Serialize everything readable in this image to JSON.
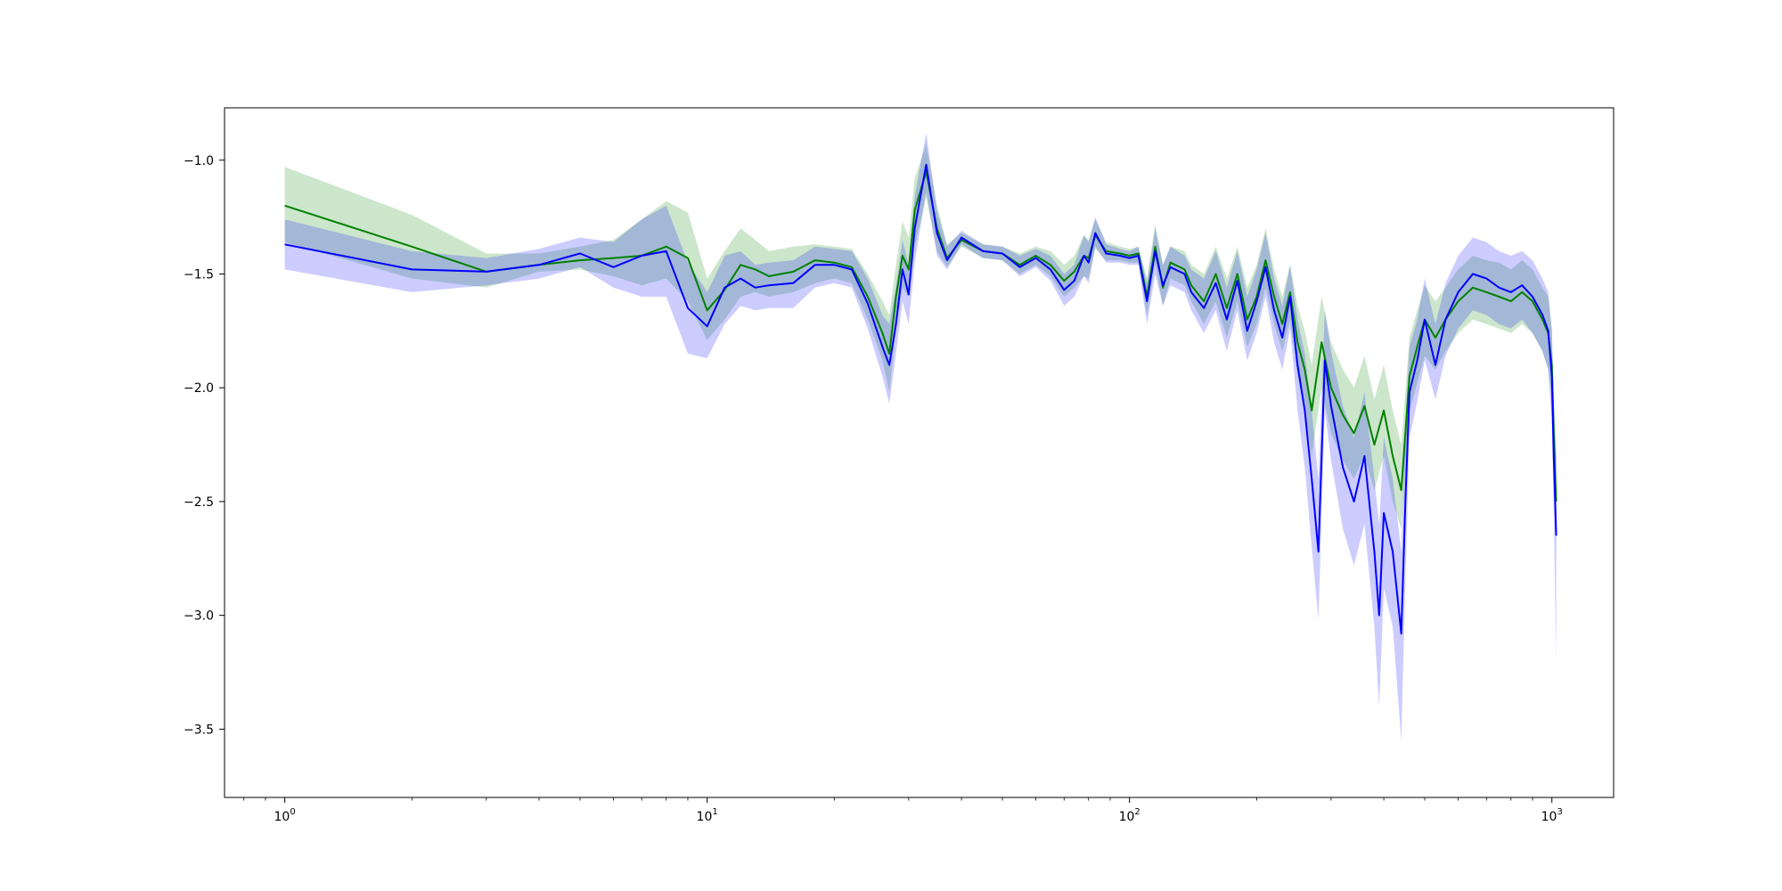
{
  "chart_data": {
    "type": "line",
    "title": "",
    "xlabel": "",
    "ylabel": "",
    "x_scale": "log",
    "xlim": [
      0.72,
      1400
    ],
    "ylim": [
      -3.8,
      -0.77
    ],
    "grid": false,
    "legend": null,
    "x_ticks": [
      {
        "value": 1,
        "label": "10",
        "exp": "0"
      },
      {
        "value": 10,
        "label": "10",
        "exp": "1"
      },
      {
        "value": 100,
        "label": "10",
        "exp": "2"
      },
      {
        "value": 1000,
        "label": "10",
        "exp": "3"
      }
    ],
    "y_ticks": [
      {
        "value": -1.0,
        "label": "−1.0"
      },
      {
        "value": -1.5,
        "label": "−1.5"
      },
      {
        "value": -2.0,
        "label": "−2.0"
      },
      {
        "value": -2.5,
        "label": "−2.5"
      },
      {
        "value": -3.0,
        "label": "−3.0"
      },
      {
        "value": -3.5,
        "label": "−3.5"
      }
    ],
    "series": [
      {
        "color": "#008000",
        "band_color": "#008000",
        "points": [
          [
            1,
            -1.2,
            -1.36,
            -1.03
          ],
          [
            2,
            -1.38,
            -1.52,
            -1.24
          ],
          [
            3,
            -1.49,
            -1.56,
            -1.41
          ],
          [
            4,
            -1.46,
            -1.49,
            -1.41
          ],
          [
            5,
            -1.44,
            -1.48,
            -1.38
          ],
          [
            6,
            -1.43,
            -1.51,
            -1.35
          ],
          [
            7,
            -1.42,
            -1.55,
            -1.26
          ],
          [
            8,
            -1.38,
            -1.52,
            -1.18
          ],
          [
            9,
            -1.43,
            -1.62,
            -1.23
          ],
          [
            10,
            -1.66,
            -1.79,
            -1.52
          ],
          [
            11,
            -1.57,
            -1.7,
            -1.4
          ],
          [
            12,
            -1.46,
            -1.6,
            -1.3
          ],
          [
            13,
            -1.48,
            -1.58,
            -1.35
          ],
          [
            14,
            -1.51,
            -1.6,
            -1.4
          ],
          [
            16,
            -1.49,
            -1.58,
            -1.38
          ],
          [
            18,
            -1.44,
            -1.54,
            -1.37
          ],
          [
            20,
            -1.45,
            -1.52,
            -1.38
          ],
          [
            22,
            -1.47,
            -1.54,
            -1.39
          ],
          [
            24,
            -1.6,
            -1.7,
            -1.5
          ],
          [
            26,
            -1.76,
            -1.88,
            -1.62
          ],
          [
            27,
            -1.85,
            -2.02,
            -1.68
          ],
          [
            28,
            -1.6,
            -1.74,
            -1.46
          ],
          [
            29,
            -1.42,
            -1.56,
            -1.27
          ],
          [
            30,
            -1.48,
            -1.6,
            -1.34
          ],
          [
            31,
            -1.22,
            -1.38,
            -1.08
          ],
          [
            33,
            -1.05,
            -1.16,
            -0.93
          ],
          [
            35,
            -1.3,
            -1.4,
            -1.2
          ],
          [
            37,
            -1.43,
            -1.47,
            -1.37
          ],
          [
            40,
            -1.35,
            -1.38,
            -1.32
          ],
          [
            45,
            -1.4,
            -1.43,
            -1.37
          ],
          [
            50,
            -1.41,
            -1.44,
            -1.38
          ],
          [
            55,
            -1.46,
            -1.5,
            -1.41
          ],
          [
            60,
            -1.42,
            -1.46,
            -1.38
          ],
          [
            65,
            -1.46,
            -1.51,
            -1.4
          ],
          [
            70,
            -1.53,
            -1.6,
            -1.46
          ],
          [
            74,
            -1.49,
            -1.56,
            -1.42
          ],
          [
            78,
            -1.42,
            -1.51,
            -1.33
          ],
          [
            80,
            -1.43,
            -1.52,
            -1.35
          ],
          [
            83,
            -1.33,
            -1.39,
            -1.26
          ],
          [
            88,
            -1.4,
            -1.44,
            -1.36
          ],
          [
            95,
            -1.41,
            -1.44,
            -1.38
          ],
          [
            100,
            -1.42,
            -1.45,
            -1.39
          ],
          [
            105,
            -1.41,
            -1.45,
            -1.38
          ],
          [
            110,
            -1.6,
            -1.68,
            -1.52
          ],
          [
            115,
            -1.38,
            -1.45,
            -1.28
          ],
          [
            120,
            -1.56,
            -1.64,
            -1.46
          ],
          [
            125,
            -1.45,
            -1.52,
            -1.38
          ],
          [
            135,
            -1.48,
            -1.55,
            -1.4
          ],
          [
            140,
            -1.55,
            -1.62,
            -1.46
          ],
          [
            150,
            -1.62,
            -1.72,
            -1.5
          ],
          [
            160,
            -1.5,
            -1.62,
            -1.38
          ],
          [
            170,
            -1.65,
            -1.78,
            -1.52
          ],
          [
            180,
            -1.5,
            -1.62,
            -1.38
          ],
          [
            190,
            -1.7,
            -1.82,
            -1.56
          ],
          [
            200,
            -1.6,
            -1.72,
            -1.46
          ],
          [
            210,
            -1.44,
            -1.56,
            -1.3
          ],
          [
            220,
            -1.6,
            -1.72,
            -1.48
          ],
          [
            230,
            -1.72,
            -1.84,
            -1.6
          ],
          [
            240,
            -1.58,
            -1.7,
            -1.46
          ],
          [
            250,
            -1.8,
            -1.95,
            -1.64
          ],
          [
            260,
            -1.92,
            -2.1,
            -1.75
          ],
          [
            270,
            -2.1,
            -2.3,
            -1.9
          ],
          [
            285,
            -1.8,
            -2.0,
            -1.6
          ],
          [
            300,
            -2.0,
            -2.2,
            -1.8
          ],
          [
            320,
            -2.12,
            -2.32,
            -1.92
          ],
          [
            340,
            -2.2,
            -2.4,
            -2.0
          ],
          [
            360,
            -2.08,
            -2.3,
            -1.86
          ],
          [
            380,
            -2.25,
            -2.45,
            -2.05
          ],
          [
            400,
            -2.1,
            -2.3,
            -1.9
          ],
          [
            420,
            -2.3,
            -2.5,
            -2.1
          ],
          [
            440,
            -2.45,
            -2.62,
            -2.25
          ],
          [
            460,
            -1.95,
            -2.1,
            -1.78
          ],
          [
            480,
            -1.82,
            -1.98,
            -1.66
          ],
          [
            500,
            -1.7,
            -1.86,
            -1.55
          ],
          [
            530,
            -1.78,
            -1.92,
            -1.62
          ],
          [
            560,
            -1.7,
            -1.84,
            -1.56
          ],
          [
            600,
            -1.62,
            -1.76,
            -1.48
          ],
          [
            650,
            -1.56,
            -1.7,
            -1.42
          ],
          [
            700,
            -1.58,
            -1.72,
            -1.44
          ],
          [
            750,
            -1.6,
            -1.74,
            -1.45
          ],
          [
            800,
            -1.62,
            -1.76,
            -1.48
          ],
          [
            850,
            -1.58,
            -1.72,
            -1.44
          ],
          [
            900,
            -1.62,
            -1.76,
            -1.48
          ],
          [
            950,
            -1.7,
            -1.84,
            -1.56
          ],
          [
            980,
            -1.76,
            -1.92,
            -1.6
          ],
          [
            1000,
            -1.9,
            -2.05,
            -1.74
          ],
          [
            1010,
            -2.2,
            -2.35,
            -2.05
          ],
          [
            1024,
            -2.5,
            -2.7,
            -2.3
          ]
        ]
      },
      {
        "color": "#0000ff",
        "band_color": "#0000ff",
        "points": [
          [
            1,
            -1.37,
            -1.48,
            -1.26
          ],
          [
            2,
            -1.48,
            -1.58,
            -1.4
          ],
          [
            3,
            -1.49,
            -1.55,
            -1.43
          ],
          [
            4,
            -1.46,
            -1.52,
            -1.39
          ],
          [
            5,
            -1.41,
            -1.47,
            -1.34
          ],
          [
            6,
            -1.47,
            -1.56,
            -1.36
          ],
          [
            7,
            -1.42,
            -1.6,
            -1.26
          ],
          [
            8,
            -1.4,
            -1.6,
            -1.2
          ],
          [
            9,
            -1.65,
            -1.85,
            -1.45
          ],
          [
            10,
            -1.73,
            -1.87,
            -1.58
          ],
          [
            11,
            -1.56,
            -1.72,
            -1.42
          ],
          [
            12,
            -1.52,
            -1.64,
            -1.4
          ],
          [
            13,
            -1.56,
            -1.66,
            -1.46
          ],
          [
            14,
            -1.55,
            -1.65,
            -1.45
          ],
          [
            16,
            -1.54,
            -1.65,
            -1.44
          ],
          [
            18,
            -1.46,
            -1.56,
            -1.38
          ],
          [
            20,
            -1.46,
            -1.54,
            -1.39
          ],
          [
            22,
            -1.48,
            -1.56,
            -1.4
          ],
          [
            24,
            -1.63,
            -1.74,
            -1.52
          ],
          [
            26,
            -1.82,
            -1.95,
            -1.68
          ],
          [
            27,
            -1.9,
            -2.07,
            -1.72
          ],
          [
            28,
            -1.72,
            -1.85,
            -1.56
          ],
          [
            29,
            -1.48,
            -1.62,
            -1.35
          ],
          [
            30,
            -1.59,
            -1.72,
            -1.46
          ],
          [
            31,
            -1.3,
            -1.45,
            -1.16
          ],
          [
            33,
            -1.02,
            -1.14,
            -0.88
          ],
          [
            35,
            -1.32,
            -1.42,
            -1.22
          ],
          [
            37,
            -1.44,
            -1.48,
            -1.38
          ],
          [
            40,
            -1.34,
            -1.37,
            -1.31
          ],
          [
            45,
            -1.4,
            -1.43,
            -1.37
          ],
          [
            50,
            -1.41,
            -1.44,
            -1.38
          ],
          [
            55,
            -1.47,
            -1.51,
            -1.42
          ],
          [
            60,
            -1.43,
            -1.47,
            -1.39
          ],
          [
            65,
            -1.48,
            -1.53,
            -1.42
          ],
          [
            70,
            -1.57,
            -1.64,
            -1.5
          ],
          [
            74,
            -1.53,
            -1.6,
            -1.46
          ],
          [
            78,
            -1.42,
            -1.51,
            -1.33
          ],
          [
            80,
            -1.45,
            -1.54,
            -1.36
          ],
          [
            83,
            -1.32,
            -1.38,
            -1.25
          ],
          [
            88,
            -1.41,
            -1.45,
            -1.37
          ],
          [
            95,
            -1.42,
            -1.45,
            -1.39
          ],
          [
            100,
            -1.43,
            -1.46,
            -1.4
          ],
          [
            105,
            -1.42,
            -1.46,
            -1.38
          ],
          [
            110,
            -1.62,
            -1.72,
            -1.54
          ],
          [
            115,
            -1.4,
            -1.5,
            -1.3
          ],
          [
            120,
            -1.55,
            -1.64,
            -1.46
          ],
          [
            125,
            -1.47,
            -1.55,
            -1.38
          ],
          [
            135,
            -1.5,
            -1.58,
            -1.42
          ],
          [
            140,
            -1.58,
            -1.66,
            -1.48
          ],
          [
            150,
            -1.65,
            -1.76,
            -1.52
          ],
          [
            160,
            -1.54,
            -1.66,
            -1.4
          ],
          [
            170,
            -1.7,
            -1.84,
            -1.56
          ],
          [
            180,
            -1.53,
            -1.66,
            -1.4
          ],
          [
            190,
            -1.75,
            -1.88,
            -1.6
          ],
          [
            200,
            -1.62,
            -1.76,
            -1.48
          ],
          [
            210,
            -1.47,
            -1.6,
            -1.32
          ],
          [
            220,
            -1.66,
            -1.8,
            -1.52
          ],
          [
            230,
            -1.78,
            -1.92,
            -1.64
          ],
          [
            240,
            -1.6,
            -1.74,
            -1.46
          ],
          [
            250,
            -1.9,
            -2.1,
            -1.7
          ],
          [
            260,
            -2.1,
            -2.35,
            -1.85
          ],
          [
            270,
            -2.4,
            -2.7,
            -2.1
          ],
          [
            280,
            -2.72,
            -3.02,
            -2.4
          ],
          [
            290,
            -1.88,
            -2.1,
            -1.66
          ],
          [
            300,
            -2.08,
            -2.32,
            -1.84
          ],
          [
            320,
            -2.35,
            -2.62,
            -2.08
          ],
          [
            340,
            -2.5,
            -2.78,
            -2.22
          ],
          [
            360,
            -2.3,
            -2.6,
            -2.02
          ],
          [
            380,
            -2.72,
            -3.05,
            -2.4
          ],
          [
            390,
            -3.0,
            -3.4,
            -2.6
          ],
          [
            400,
            -2.55,
            -2.88,
            -2.22
          ],
          [
            420,
            -2.72,
            -3.05,
            -2.4
          ],
          [
            440,
            -3.08,
            -3.55,
            -2.72
          ],
          [
            450,
            -2.5,
            -2.85,
            -2.15
          ],
          [
            460,
            -2.02,
            -2.22,
            -1.82
          ],
          [
            480,
            -1.88,
            -2.06,
            -1.7
          ],
          [
            500,
            -1.7,
            -1.88,
            -1.52
          ],
          [
            530,
            -1.9,
            -2.05,
            -1.72
          ],
          [
            560,
            -1.7,
            -1.86,
            -1.54
          ],
          [
            600,
            -1.58,
            -1.74,
            -1.42
          ],
          [
            650,
            -1.5,
            -1.66,
            -1.34
          ],
          [
            700,
            -1.52,
            -1.68,
            -1.36
          ],
          [
            750,
            -1.56,
            -1.72,
            -1.4
          ],
          [
            800,
            -1.58,
            -1.74,
            -1.42
          ],
          [
            850,
            -1.55,
            -1.7,
            -1.4
          ],
          [
            900,
            -1.6,
            -1.76,
            -1.44
          ],
          [
            950,
            -1.68,
            -1.84,
            -1.52
          ],
          [
            980,
            -1.75,
            -1.92,
            -1.58
          ],
          [
            1000,
            -1.95,
            -2.15,
            -1.75
          ],
          [
            1010,
            -2.3,
            -2.55,
            -2.05
          ],
          [
            1024,
            -2.65,
            -3.2,
            -2.3
          ]
        ]
      }
    ]
  }
}
